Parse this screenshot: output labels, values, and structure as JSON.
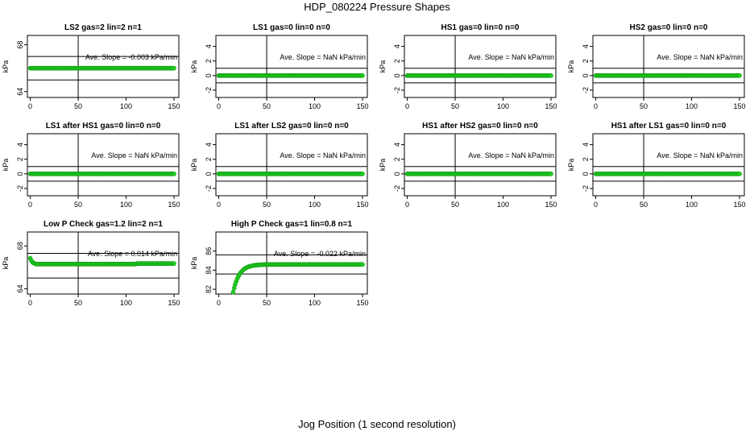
{
  "title": "HDP_080224  Pressure Shapes",
  "xlabel": "Jog Position (1 second resolution)",
  "ylabel": "kPa",
  "chart_data": [
    {
      "type": "scatter",
      "title": "LS2 gas=2 lin=2 n=1",
      "annotation": "Ave. Slope =  -0.003  kPa/min",
      "ylim": [
        63.5,
        68.8
      ],
      "yticks": [
        "64",
        "68"
      ],
      "hlines": [
        67.0,
        65.0
      ],
      "xlim": [
        -3,
        155
      ],
      "xticks": [
        "0",
        "50",
        "100",
        "150"
      ],
      "vline": 50,
      "points": {
        "kind": "flat",
        "start": 0,
        "end": 150,
        "value": 66.0
      },
      "color": "#22cc22"
    },
    {
      "type": "scatter",
      "title": "LS1 gas=0 lin=0 n=0",
      "annotation": "Ave. Slope =  NaN  kPa/min",
      "ylim": [
        -3,
        5.5
      ],
      "yticks": [
        "-2",
        "0",
        "2",
        "4"
      ],
      "hlines": [
        1,
        -1
      ],
      "xlim": [
        -3,
        155
      ],
      "xticks": [
        "0",
        "50",
        "100",
        "150"
      ],
      "vline": 50,
      "points": {
        "kind": "flat",
        "start": 0,
        "end": 150,
        "value": 0
      },
      "color": "#22cc22"
    },
    {
      "type": "scatter",
      "title": "HS1 gas=0 lin=0 n=0",
      "annotation": "Ave. Slope =  NaN  kPa/min",
      "ylim": [
        -3,
        5.5
      ],
      "yticks": [
        "-2",
        "0",
        "2",
        "4"
      ],
      "hlines": [
        1,
        -1
      ],
      "xlim": [
        -3,
        155
      ],
      "xticks": [
        "0",
        "50",
        "100",
        "150"
      ],
      "vline": 50,
      "points": {
        "kind": "flat",
        "start": 0,
        "end": 150,
        "value": 0
      },
      "color": "#22cc22"
    },
    {
      "type": "scatter",
      "title": "HS2 gas=0 lin=0 n=0",
      "annotation": "Ave. Slope =  NaN  kPa/min",
      "ylim": [
        -3,
        5.5
      ],
      "yticks": [
        "-2",
        "0",
        "2",
        "4"
      ],
      "hlines": [
        1,
        -1
      ],
      "xlim": [
        -3,
        155
      ],
      "xticks": [
        "0",
        "50",
        "100",
        "150"
      ],
      "vline": 50,
      "points": {
        "kind": "flat",
        "start": 0,
        "end": 150,
        "value": 0
      },
      "color": "#22cc22"
    },
    {
      "type": "scatter",
      "title": "LS1 after HS1 gas=0 lin=0 n=0",
      "annotation": "Ave. Slope =  NaN  kPa/min",
      "ylim": [
        -3,
        5.5
      ],
      "yticks": [
        "-2",
        "0",
        "2",
        "4"
      ],
      "hlines": [
        1,
        -1
      ],
      "xlim": [
        -3,
        155
      ],
      "xticks": [
        "0",
        "50",
        "100",
        "150"
      ],
      "vline": 50,
      "points": {
        "kind": "flat",
        "start": 0,
        "end": 150,
        "value": 0
      },
      "color": "#22cc22"
    },
    {
      "type": "scatter",
      "title": "LS1 after LS2 gas=0 lin=0 n=0",
      "annotation": "Ave. Slope =  NaN  kPa/min",
      "ylim": [
        -3,
        5.5
      ],
      "yticks": [
        "-2",
        "0",
        "2",
        "4"
      ],
      "hlines": [
        1,
        -1
      ],
      "xlim": [
        -3,
        155
      ],
      "xticks": [
        "0",
        "50",
        "100",
        "150"
      ],
      "vline": 50,
      "points": {
        "kind": "flat",
        "start": 0,
        "end": 150,
        "value": 0
      },
      "color": "#22cc22"
    },
    {
      "type": "scatter",
      "title": "HS1 after HS2 gas=0 lin=0 n=0",
      "annotation": "Ave. Slope =  NaN  kPa/min",
      "ylim": [
        -3,
        5.5
      ],
      "yticks": [
        "-2",
        "0",
        "2",
        "4"
      ],
      "hlines": [
        1,
        -1
      ],
      "xlim": [
        -3,
        155
      ],
      "xticks": [
        "0",
        "50",
        "100",
        "150"
      ],
      "vline": 50,
      "points": {
        "kind": "flat",
        "start": 0,
        "end": 150,
        "value": 0
      },
      "color": "#22cc22"
    },
    {
      "type": "scatter",
      "title": "HS1 after LS1 gas=0 lin=0 n=0",
      "annotation": "Ave. Slope =  NaN  kPa/min",
      "ylim": [
        -3,
        5.5
      ],
      "yticks": [
        "-2",
        "0",
        "2",
        "4"
      ],
      "hlines": [
        1,
        -1
      ],
      "xlim": [
        -3,
        155
      ],
      "xticks": [
        "0",
        "50",
        "100",
        "150"
      ],
      "vline": 50,
      "points": {
        "kind": "flat",
        "start": 0,
        "end": 150,
        "value": 0
      },
      "color": "#22cc22"
    },
    {
      "type": "scatter",
      "title": "Low P Check gas=1.2 lin=2 n=1",
      "annotation": "Ave. Slope =  0.014  kPa/min",
      "ylim": [
        63.5,
        69.3
      ],
      "yticks": [
        "64",
        "68"
      ],
      "hlines": [
        67.3,
        65.0
      ],
      "xlim": [
        -3,
        155
      ],
      "xticks": [
        "0",
        "50",
        "100",
        "150"
      ],
      "vline": 50,
      "points": {
        "kind": "lowp",
        "start": 0,
        "end": 150,
        "value": 66.3
      },
      "color": "#22cc22"
    },
    {
      "type": "scatter",
      "title": "High P Check gas=1 lin=0.8 n=1",
      "annotation": "Ave. Slope =  -0.022  kPa/min",
      "ylim": [
        81.5,
        88.0
      ],
      "yticks": [
        "82",
        "84",
        "86"
      ],
      "hlines": [
        85.6,
        83.6
      ],
      "xlim": [
        -3,
        155
      ],
      "xticks": [
        "0",
        "50",
        "100",
        "150"
      ],
      "vline": 50,
      "points": {
        "kind": "highp",
        "start": 15,
        "end": 150,
        "value": 84.6
      },
      "color": "#22cc22"
    }
  ]
}
